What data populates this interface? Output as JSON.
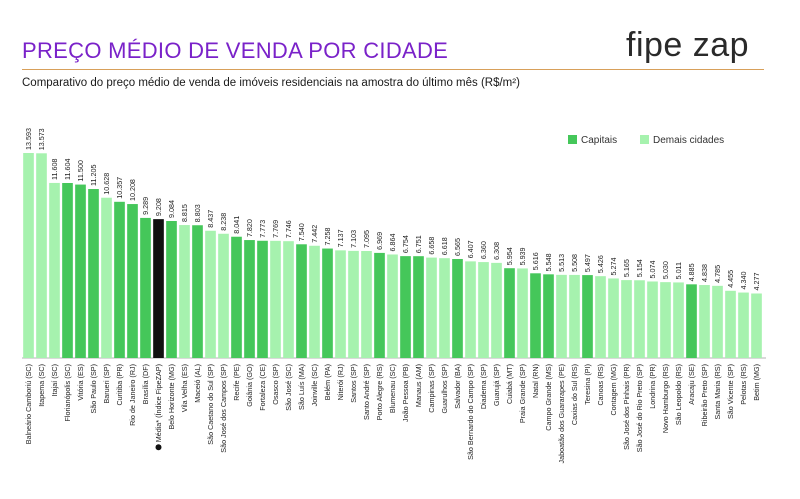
{
  "header": {
    "title": "PREÇO MÉDIO DE VENDA POR CIDADE",
    "subtitle": "Comparativo do preço médio de venda de imóveis residenciais na amostra do último mês (R$/m²)",
    "logo": "fipe zap"
  },
  "legend": {
    "capitais": "Capitais",
    "demais": "Demais cidades"
  },
  "colors": {
    "capital": "#45c75a",
    "other": "#a6f2ae",
    "media": "#111111",
    "title": "#7a22c9"
  },
  "chart_data": {
    "type": "bar",
    "title": "PREÇO MÉDIO DE VENDA POR CIDADE",
    "ylabel": "",
    "xlabel": "",
    "ylim": [
      0,
      14500
    ],
    "grid": false,
    "legend_position": "top-right",
    "categories": [
      "Balneário Camboriú (SC)",
      "Itapema (SC)",
      "Itajaí (SC)",
      "Florianópolis (SC)",
      "Vitória (ES)",
      "São Paulo (SP)",
      "Barueri (SP)",
      "Curitiba (PR)",
      "Rio de Janeiro (RJ)",
      "Brasília (DF)",
      "Média* (Índice FipeZAP)",
      "Belo Horizonte (MG)",
      "Vila Velha (ES)",
      "Maceió (AL)",
      "São Caetano do Sul (SP)",
      "São José dos Campos (SP)",
      "Recife (PE)",
      "Goiânia (GO)",
      "Fortaleza (CE)",
      "Osasco (SP)",
      "São José (SC)",
      "São Luís (MA)",
      "Joinville (SC)",
      "Belém (PA)",
      "Niterói (RJ)",
      "Santos (SP)",
      "Santo André (SP)",
      "Porto Alegre (RS)",
      "Blumenau (SC)",
      "João Pessoa (PB)",
      "Manaus (AM)",
      "Campinas (SP)",
      "Guarulhos (SP)",
      "Salvador (BA)",
      "São Bernardo do Campo (SP)",
      "Diadema (SP)",
      "Guarujá (SP)",
      "Cuiabá (MT)",
      "Praia Grande (SP)",
      "Natal (RN)",
      "Campo Grande (MS)",
      "Jaboatão dos Guararapes (PE)",
      "Caxias do Sul (RS)",
      "Teresina (PI)",
      "Canoas (RS)",
      "Contagem (MG)",
      "São José dos Pinhais (PR)",
      "São José do Rio Preto (SP)",
      "Londrina (PR)",
      "Novo Hamburgo (RS)",
      "São Leopoldo (RS)",
      "Aracaju (SE)",
      "Ribeirão Preto (SP)",
      "Santa Maria (RS)",
      "São Vicente (SP)",
      "Pelotas (RS)",
      "Betim (MG)"
    ],
    "values": [
      13593,
      13573,
      11608,
      11604,
      11500,
      11205,
      10628,
      10357,
      10208,
      9289,
      9208,
      9084,
      8815,
      8803,
      8437,
      8238,
      8041,
      7820,
      7773,
      7769,
      7746,
      7540,
      7442,
      7258,
      7137,
      7103,
      7095,
      6969,
      6864,
      6754,
      6751,
      6658,
      6618,
      6565,
      6407,
      6360,
      6308,
      5954,
      5939,
      5616,
      5548,
      5513,
      5508,
      5497,
      5426,
      5274,
      5165,
      5154,
      5074,
      5030,
      5011,
      4885,
      4838,
      4785,
      4455,
      4340,
      4277
    ],
    "value_labels": [
      "13.593",
      "13.573",
      "11.608",
      "11.604",
      "11.500",
      "11.205",
      "10.628",
      "10.357",
      "10.208",
      "9.289",
      "9.208",
      "9.084",
      "8.815",
      "8.803",
      "8.437",
      "8.238",
      "8.041",
      "7.820",
      "7.773",
      "7.769",
      "7.746",
      "7.540",
      "7.442",
      "7.258",
      "7.137",
      "7.103",
      "7.095",
      "6.969",
      "6.864",
      "6.754",
      "6.751",
      "6.658",
      "6.618",
      "6.565",
      "6.407",
      "6.360",
      "6.308",
      "5.954",
      "5.939",
      "5.616",
      "5.548",
      "5.513",
      "5.508",
      "5.497",
      "5.426",
      "5.274",
      "5.165",
      "5.154",
      "5.074",
      "5.030",
      "5.011",
      "4.885",
      "4.838",
      "4.785",
      "4.455",
      "4.340",
      "4.277"
    ],
    "group": [
      "other",
      "other",
      "other",
      "capital",
      "capital",
      "capital",
      "other",
      "capital",
      "capital",
      "capital",
      "media",
      "capital",
      "other",
      "capital",
      "other",
      "other",
      "capital",
      "capital",
      "capital",
      "other",
      "other",
      "capital",
      "other",
      "capital",
      "other",
      "other",
      "other",
      "capital",
      "other",
      "capital",
      "capital",
      "other",
      "other",
      "capital",
      "other",
      "other",
      "other",
      "capital",
      "other",
      "capital",
      "capital",
      "other",
      "other",
      "capital",
      "other",
      "other",
      "other",
      "other",
      "other",
      "other",
      "other",
      "capital",
      "other",
      "other",
      "other",
      "other",
      "other"
    ],
    "series": [
      {
        "name": "Capitais",
        "key": "capital"
      },
      {
        "name": "Demais cidades",
        "key": "other"
      }
    ]
  }
}
